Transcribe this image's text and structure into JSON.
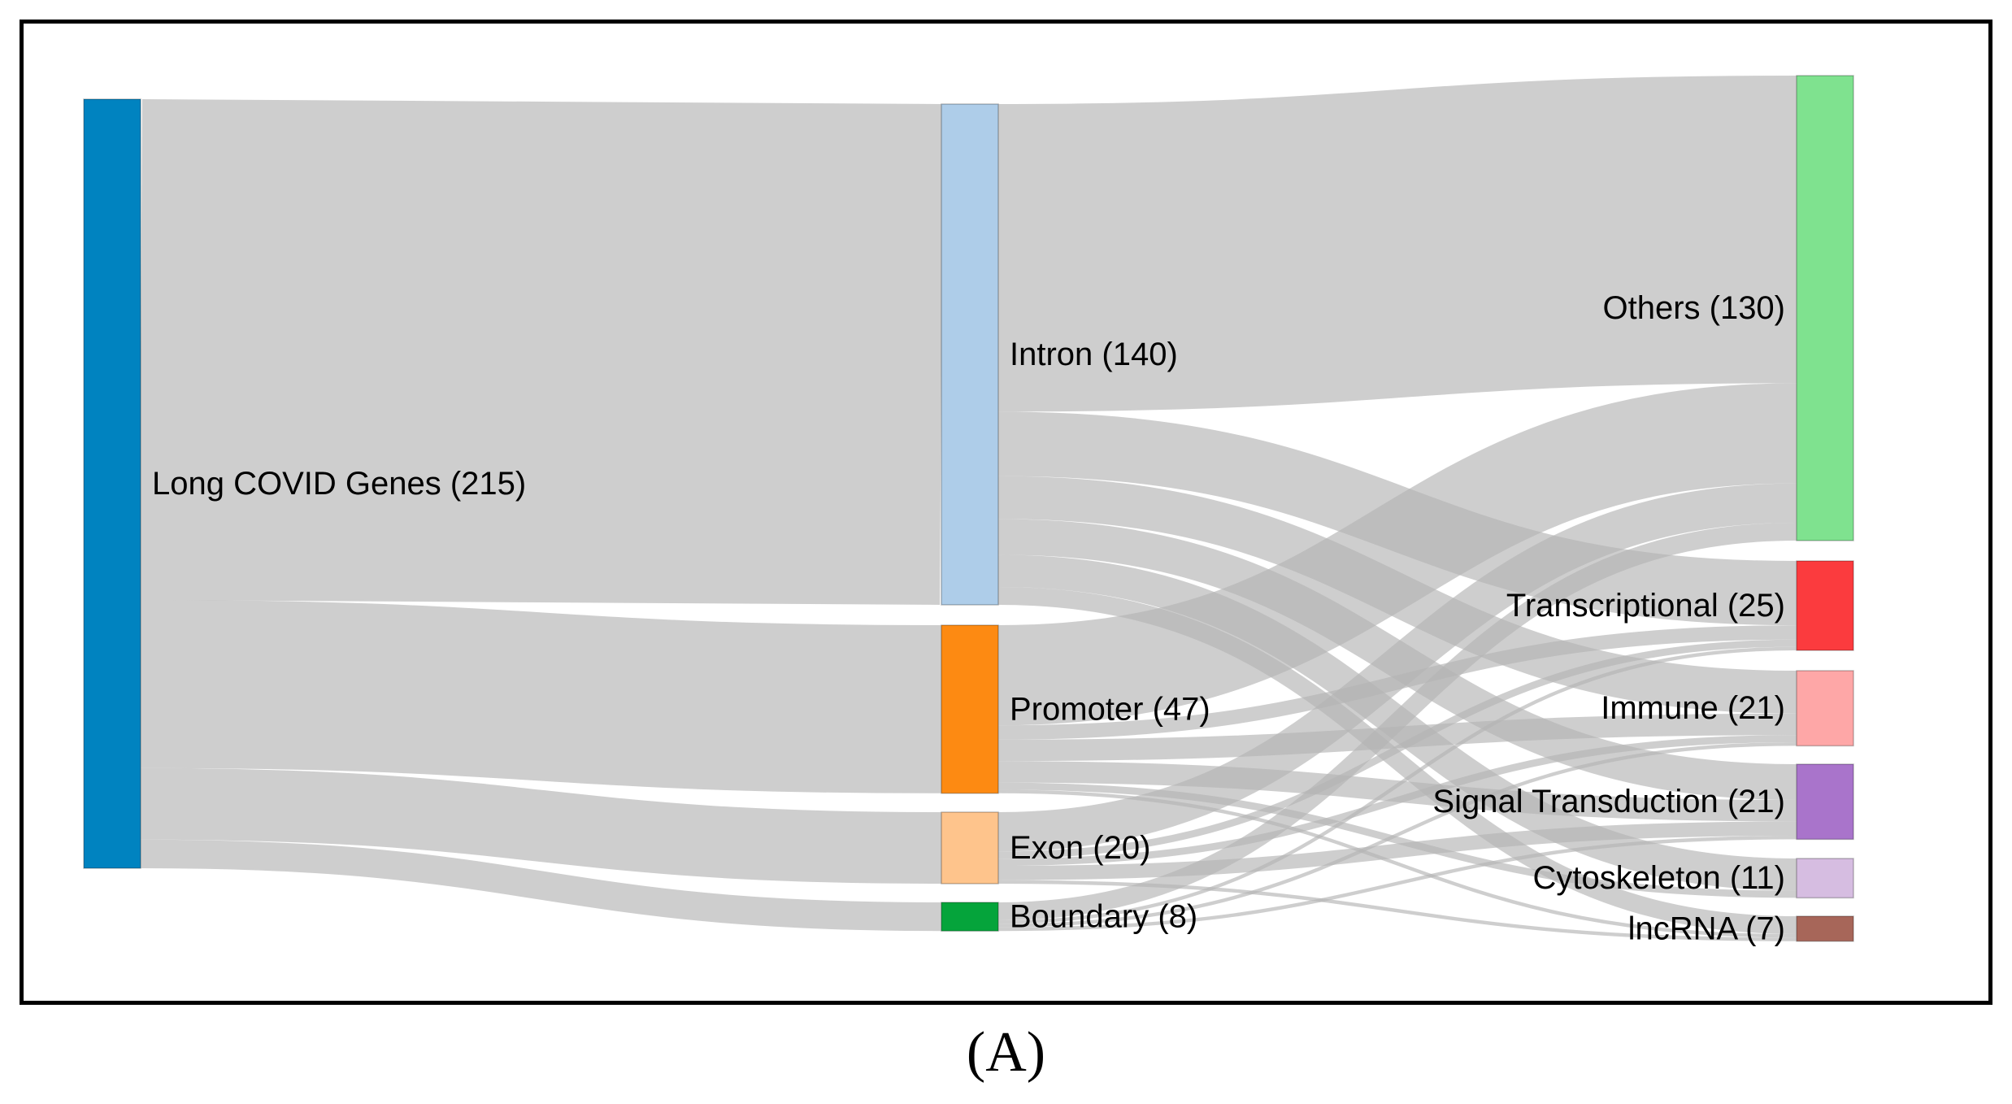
{
  "chart_data": {
    "type": "sankey",
    "nodes": [
      {
        "id": "genes",
        "label": "Long COVID Genes (215)",
        "value": 215,
        "column": 0,
        "color": "#0083c0"
      },
      {
        "id": "intron",
        "label": "Intron (140)",
        "value": 140,
        "column": 1,
        "color": "#aecde9"
      },
      {
        "id": "promoter",
        "label": "Promoter (47)",
        "value": 47,
        "column": 1,
        "color": "#fd8a12"
      },
      {
        "id": "exon",
        "label": "Exon (20)",
        "value": 20,
        "column": 1,
        "color": "#fec48c"
      },
      {
        "id": "boundary",
        "label": "Boundary (8)",
        "value": 8,
        "column": 1,
        "color": "#05a43b"
      },
      {
        "id": "others",
        "label": "Others (130)",
        "value": 130,
        "column": 2,
        "color": "#7fe28f"
      },
      {
        "id": "transcriptional",
        "label": "Transcriptional (25)",
        "value": 25,
        "column": 2,
        "color": "#fb3b3e"
      },
      {
        "id": "immune",
        "label": "Immune (21)",
        "value": 21,
        "column": 2,
        "color": "#fea7a7"
      },
      {
        "id": "signal",
        "label": "Signal Transduction (21)",
        "value": 21,
        "column": 2,
        "color": "#a974cb"
      },
      {
        "id": "cytoskeleton",
        "label": "Cytoskeleton (11)",
        "value": 11,
        "column": 2,
        "color": "#d6bde1"
      },
      {
        "id": "lncrna",
        "label": "lncRNA (7)",
        "value": 7,
        "column": 2,
        "color": "#a76659"
      }
    ],
    "links": [
      {
        "source": "genes",
        "target": "intron",
        "value": 140
      },
      {
        "source": "genes",
        "target": "promoter",
        "value": 47
      },
      {
        "source": "genes",
        "target": "exon",
        "value": 20
      },
      {
        "source": "genes",
        "target": "boundary",
        "value": 8
      },
      {
        "source": "intron",
        "target": "others",
        "value": 86
      },
      {
        "source": "intron",
        "target": "transcriptional",
        "value": 18
      },
      {
        "source": "intron",
        "target": "immune",
        "value": 12
      },
      {
        "source": "intron",
        "target": "signal",
        "value": 10
      },
      {
        "source": "intron",
        "target": "cytoskeleton",
        "value": 9
      },
      {
        "source": "intron",
        "target": "lncrna",
        "value": 5
      },
      {
        "source": "promoter",
        "target": "others",
        "value": 28
      },
      {
        "source": "promoter",
        "target": "transcriptional",
        "value": 4
      },
      {
        "source": "promoter",
        "target": "immune",
        "value": 6
      },
      {
        "source": "promoter",
        "target": "signal",
        "value": 6
      },
      {
        "source": "promoter",
        "target": "cytoskeleton",
        "value": 2
      },
      {
        "source": "promoter",
        "target": "lncrna",
        "value": 1
      },
      {
        "source": "exon",
        "target": "others",
        "value": 11
      },
      {
        "source": "exon",
        "target": "transcriptional",
        "value": 2
      },
      {
        "source": "exon",
        "target": "immune",
        "value": 2
      },
      {
        "source": "exon",
        "target": "signal",
        "value": 4
      },
      {
        "source": "exon",
        "target": "lncrna",
        "value": 1
      },
      {
        "source": "boundary",
        "target": "others",
        "value": 5
      },
      {
        "source": "boundary",
        "target": "transcriptional",
        "value": 1
      },
      {
        "source": "boundary",
        "target": "immune",
        "value": 1
      },
      {
        "source": "boundary",
        "target": "signal",
        "value": 1
      }
    ],
    "link_color": "#b3b3b3"
  },
  "panel_label": "(A)"
}
